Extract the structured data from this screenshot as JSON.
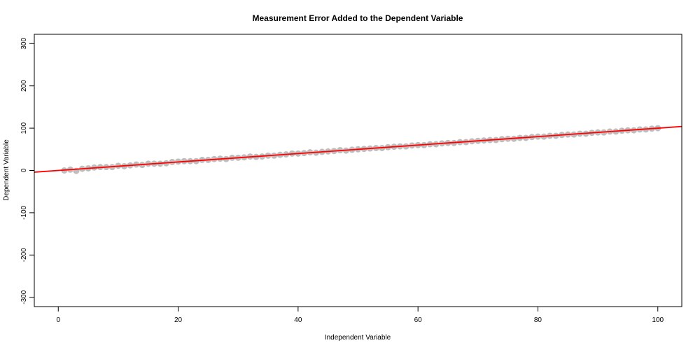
{
  "chart_data": {
    "type": "scatter",
    "title": "Measurement Error Added to the Dependent Variable",
    "xlabel": "Independent Variable",
    "ylabel": "Dependent Variable",
    "xlim": [
      -4,
      104
    ],
    "ylim": [
      -322,
      322
    ],
    "xticks": [
      0,
      20,
      40,
      60,
      80,
      100
    ],
    "yticks": [
      -300,
      -200,
      -100,
      0,
      100,
      200,
      300
    ],
    "grid": false,
    "series": [
      {
        "kind": "points",
        "color": "#bebebe",
        "x": [
          1,
          2,
          3,
          4,
          5,
          6,
          7,
          8,
          9,
          10,
          11,
          12,
          13,
          14,
          15,
          16,
          17,
          18,
          19,
          20,
          21,
          22,
          23,
          24,
          25,
          26,
          27,
          28,
          29,
          30,
          31,
          32,
          33,
          34,
          35,
          36,
          37,
          38,
          39,
          40,
          41,
          42,
          43,
          44,
          45,
          46,
          47,
          48,
          49,
          50,
          51,
          52,
          53,
          54,
          55,
          56,
          57,
          58,
          59,
          60,
          61,
          62,
          63,
          64,
          65,
          66,
          67,
          68,
          69,
          70,
          71,
          72,
          73,
          74,
          75,
          76,
          77,
          78,
          79,
          80,
          81,
          82,
          83,
          84,
          85,
          86,
          87,
          88,
          89,
          90,
          91,
          92,
          93,
          94,
          95,
          96,
          97,
          98,
          99,
          100
        ],
        "y": [
          0,
          2,
          -1,
          4,
          5,
          7,
          8,
          8,
          8,
          11,
          10,
          12,
          14,
          13,
          16,
          16,
          16,
          17,
          20,
          21,
          22,
          22,
          22,
          25,
          25,
          27,
          28,
          27,
          30,
          30,
          31,
          33,
          32,
          33,
          35,
          35,
          37,
          38,
          40,
          40,
          41,
          43,
          42,
          44,
          45,
          46,
          48,
          47,
          49,
          50,
          51,
          52,
          53,
          53,
          55,
          56,
          57,
          57,
          59,
          60,
          60,
          62,
          62,
          64,
          65,
          65,
          67,
          67,
          69,
          70,
          71,
          72,
          72,
          74,
          75,
          75,
          77,
          77,
          79,
          80,
          80,
          82,
          82,
          84,
          85,
          85,
          87,
          87,
          89,
          90,
          90,
          92,
          92,
          94,
          95,
          95,
          97,
          97,
          99,
          100
        ]
      },
      {
        "kind": "fit-line",
        "color": "#ff0000",
        "intercept": 0,
        "slope": 1
      }
    ]
  }
}
